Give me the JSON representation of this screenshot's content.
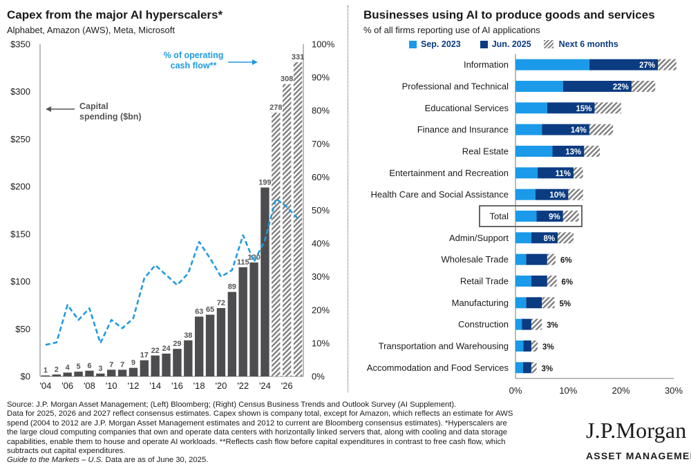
{
  "colors": {
    "bar_dark": "#4d4d4f",
    "line_blue": "#1f9ae0",
    "sep2023": "#1a9ae8",
    "jun2025": "#0b3c82",
    "hatch": "#7f7f7f",
    "text": "#1a1a1a"
  },
  "left": {
    "title": "Capex from the major AI hyperscalers*",
    "subtitle": "Alphabet, Amazon (AWS), Meta, Microsoft",
    "annotation_capex": [
      "Capital",
      "spending ($bn)"
    ],
    "annotation_cfo": [
      "% of operating",
      "cash flow**"
    ],
    "arrow_left_icon": "arrow-left-icon",
    "arrow_right_icon": "arrow-right-icon"
  },
  "right": {
    "title": "Businesses using AI to produce goods and services",
    "subtitle": "% of all firms reporting use of AI applications",
    "legend": [
      "Sep. 2023",
      "Jun. 2025",
      "Next 6 months"
    ]
  },
  "chart_data": [
    {
      "type": "bar",
      "title": "Capex from the major AI hyperscalers*",
      "subtitle": "Alphabet, Amazon (AWS), Meta, Microsoft",
      "categories": [
        "2004",
        "2005",
        "2006",
        "2007",
        "2008",
        "2009",
        "2010",
        "2011",
        "2012",
        "2013",
        "2014",
        "2015",
        "2016",
        "2017",
        "2018",
        "2019",
        "2020",
        "2021",
        "2022",
        "2023",
        "2024",
        "2025",
        "2026",
        "2027"
      ],
      "x_tick_labels": [
        "'04",
        "'06",
        "'08",
        "'10",
        "'12",
        "'14",
        "'16",
        "'18",
        "'20",
        "'22",
        "'24",
        "'26"
      ],
      "series": [
        {
          "name": "Capital spending ($bn)",
          "axis": "left",
          "values": [
            1,
            2,
            4,
            5,
            6,
            3,
            7,
            7,
            9,
            17,
            22,
            24,
            29,
            38,
            63,
            65,
            72,
            89,
            115,
            120,
            199,
            278,
            308,
            331
          ],
          "data_labels": [
            "1",
            "2",
            "4",
            "5",
            "6",
            "3",
            "7",
            "7",
            "9",
            "17",
            "22",
            "24",
            "29",
            "38",
            "63",
            "65",
            "72",
            "89",
            "115",
            "120",
            "199",
            "278",
            "308",
            "331"
          ],
          "estimate_years": [
            "2025",
            "2026",
            "2027"
          ]
        },
        {
          "name": "% of operating cash flow**",
          "axis": "right",
          "type": "line",
          "values": [
            9.5,
            10.2,
            21.5,
            17.0,
            20.5,
            10.0,
            17.0,
            14.5,
            17.5,
            29.5,
            33.5,
            30.5,
            27.5,
            31.0,
            40.5,
            35.5,
            30.0,
            32.0,
            42.5,
            34.5,
            41.0,
            53.5,
            51.0,
            47.5
          ]
        }
      ],
      "ylim_left": [
        0,
        350
      ],
      "yticks_left": [
        "$0",
        "$50",
        "$100",
        "$150",
        "$200",
        "$250",
        "$300",
        "$350"
      ],
      "ylim_right": [
        0,
        100
      ],
      "yticks_right": [
        "0%",
        "10%",
        "20%",
        "30%",
        "40%",
        "50%",
        "60%",
        "70%",
        "80%",
        "90%",
        "100%"
      ]
    },
    {
      "type": "bar",
      "orientation": "horizontal",
      "title": "Businesses using AI to produce goods and services",
      "subtitle": "% of all firms reporting use of AI applications",
      "categories": [
        "Information",
        "Professional and Technical",
        "Educational Services",
        "Finance and Insurance",
        "Real Estate",
        "Entertainment and Recreation",
        "Health Care and Social Assistance",
        "Total",
        "Admin/Support",
        "Wholesale Trade",
        "Retail Trade",
        "Manufacturing",
        "Construction",
        "Transportation and Warehousing",
        "Accommodation and Food Services"
      ],
      "series": [
        {
          "name": "Sep. 2023",
          "values": [
            14,
            9,
            6,
            5,
            7,
            4.2,
            3.8,
            4,
            3,
            2,
            3,
            2,
            1.2,
            1.5,
            1.4
          ]
        },
        {
          "name": "Jun. 2025",
          "values": [
            27,
            22,
            15,
            14,
            13,
            11,
            10,
            9,
            8,
            6,
            6,
            5,
            3,
            3,
            3
          ]
        },
        {
          "name": "Next 6 months",
          "values": [
            30.5,
            26.5,
            20,
            18.5,
            16,
            12.8,
            12.8,
            12,
            11,
            7.6,
            7.8,
            7.4,
            5,
            4.2,
            4
          ]
        }
      ],
      "data_labels": [
        "27%",
        "22%",
        "15%",
        "14%",
        "13%",
        "11%",
        "10%",
        "9%",
        "8%",
        "6%",
        "6%",
        "5%",
        "3%",
        "3%",
        "3%"
      ],
      "highlighted_category": "Total",
      "xlim": [
        0,
        30
      ],
      "xticks": [
        "0%",
        "10%",
        "20%",
        "30%"
      ]
    }
  ],
  "footnote": {
    "lines": [
      "Source: J.P. Morgan Asset Management; (Left) Bloomberg; (Right) Census Business Trends and Outlook Survey (AI Supplement).",
      "Data for 2025, 2026 and 2027 reflect consensus estimates. Capex shown is company total, except for Amazon, which reflects an estimate for AWS",
      "spend (2004 to 2012 are J.P. Morgan Asset Management estimates and 2012 to current are Bloomberg consensus estimates). *Hyperscalers are",
      "the large cloud computing companies that own and operate data centers with horizontally linked servers that, along with cooling and data storage",
      "capabilities, enable them to house and operate AI workloads. **Reflects cash flow before capital expenditures in contrast to free cash flow, which",
      "subtracts out capital expenditures."
    ],
    "guide_italic": "Guide to the Markets – U.S.",
    "guide_rest": " Data are as of June 30, 2025."
  },
  "logo": {
    "main": "J.P.Morgan",
    "sub": "ASSET MANAGEMENT"
  }
}
